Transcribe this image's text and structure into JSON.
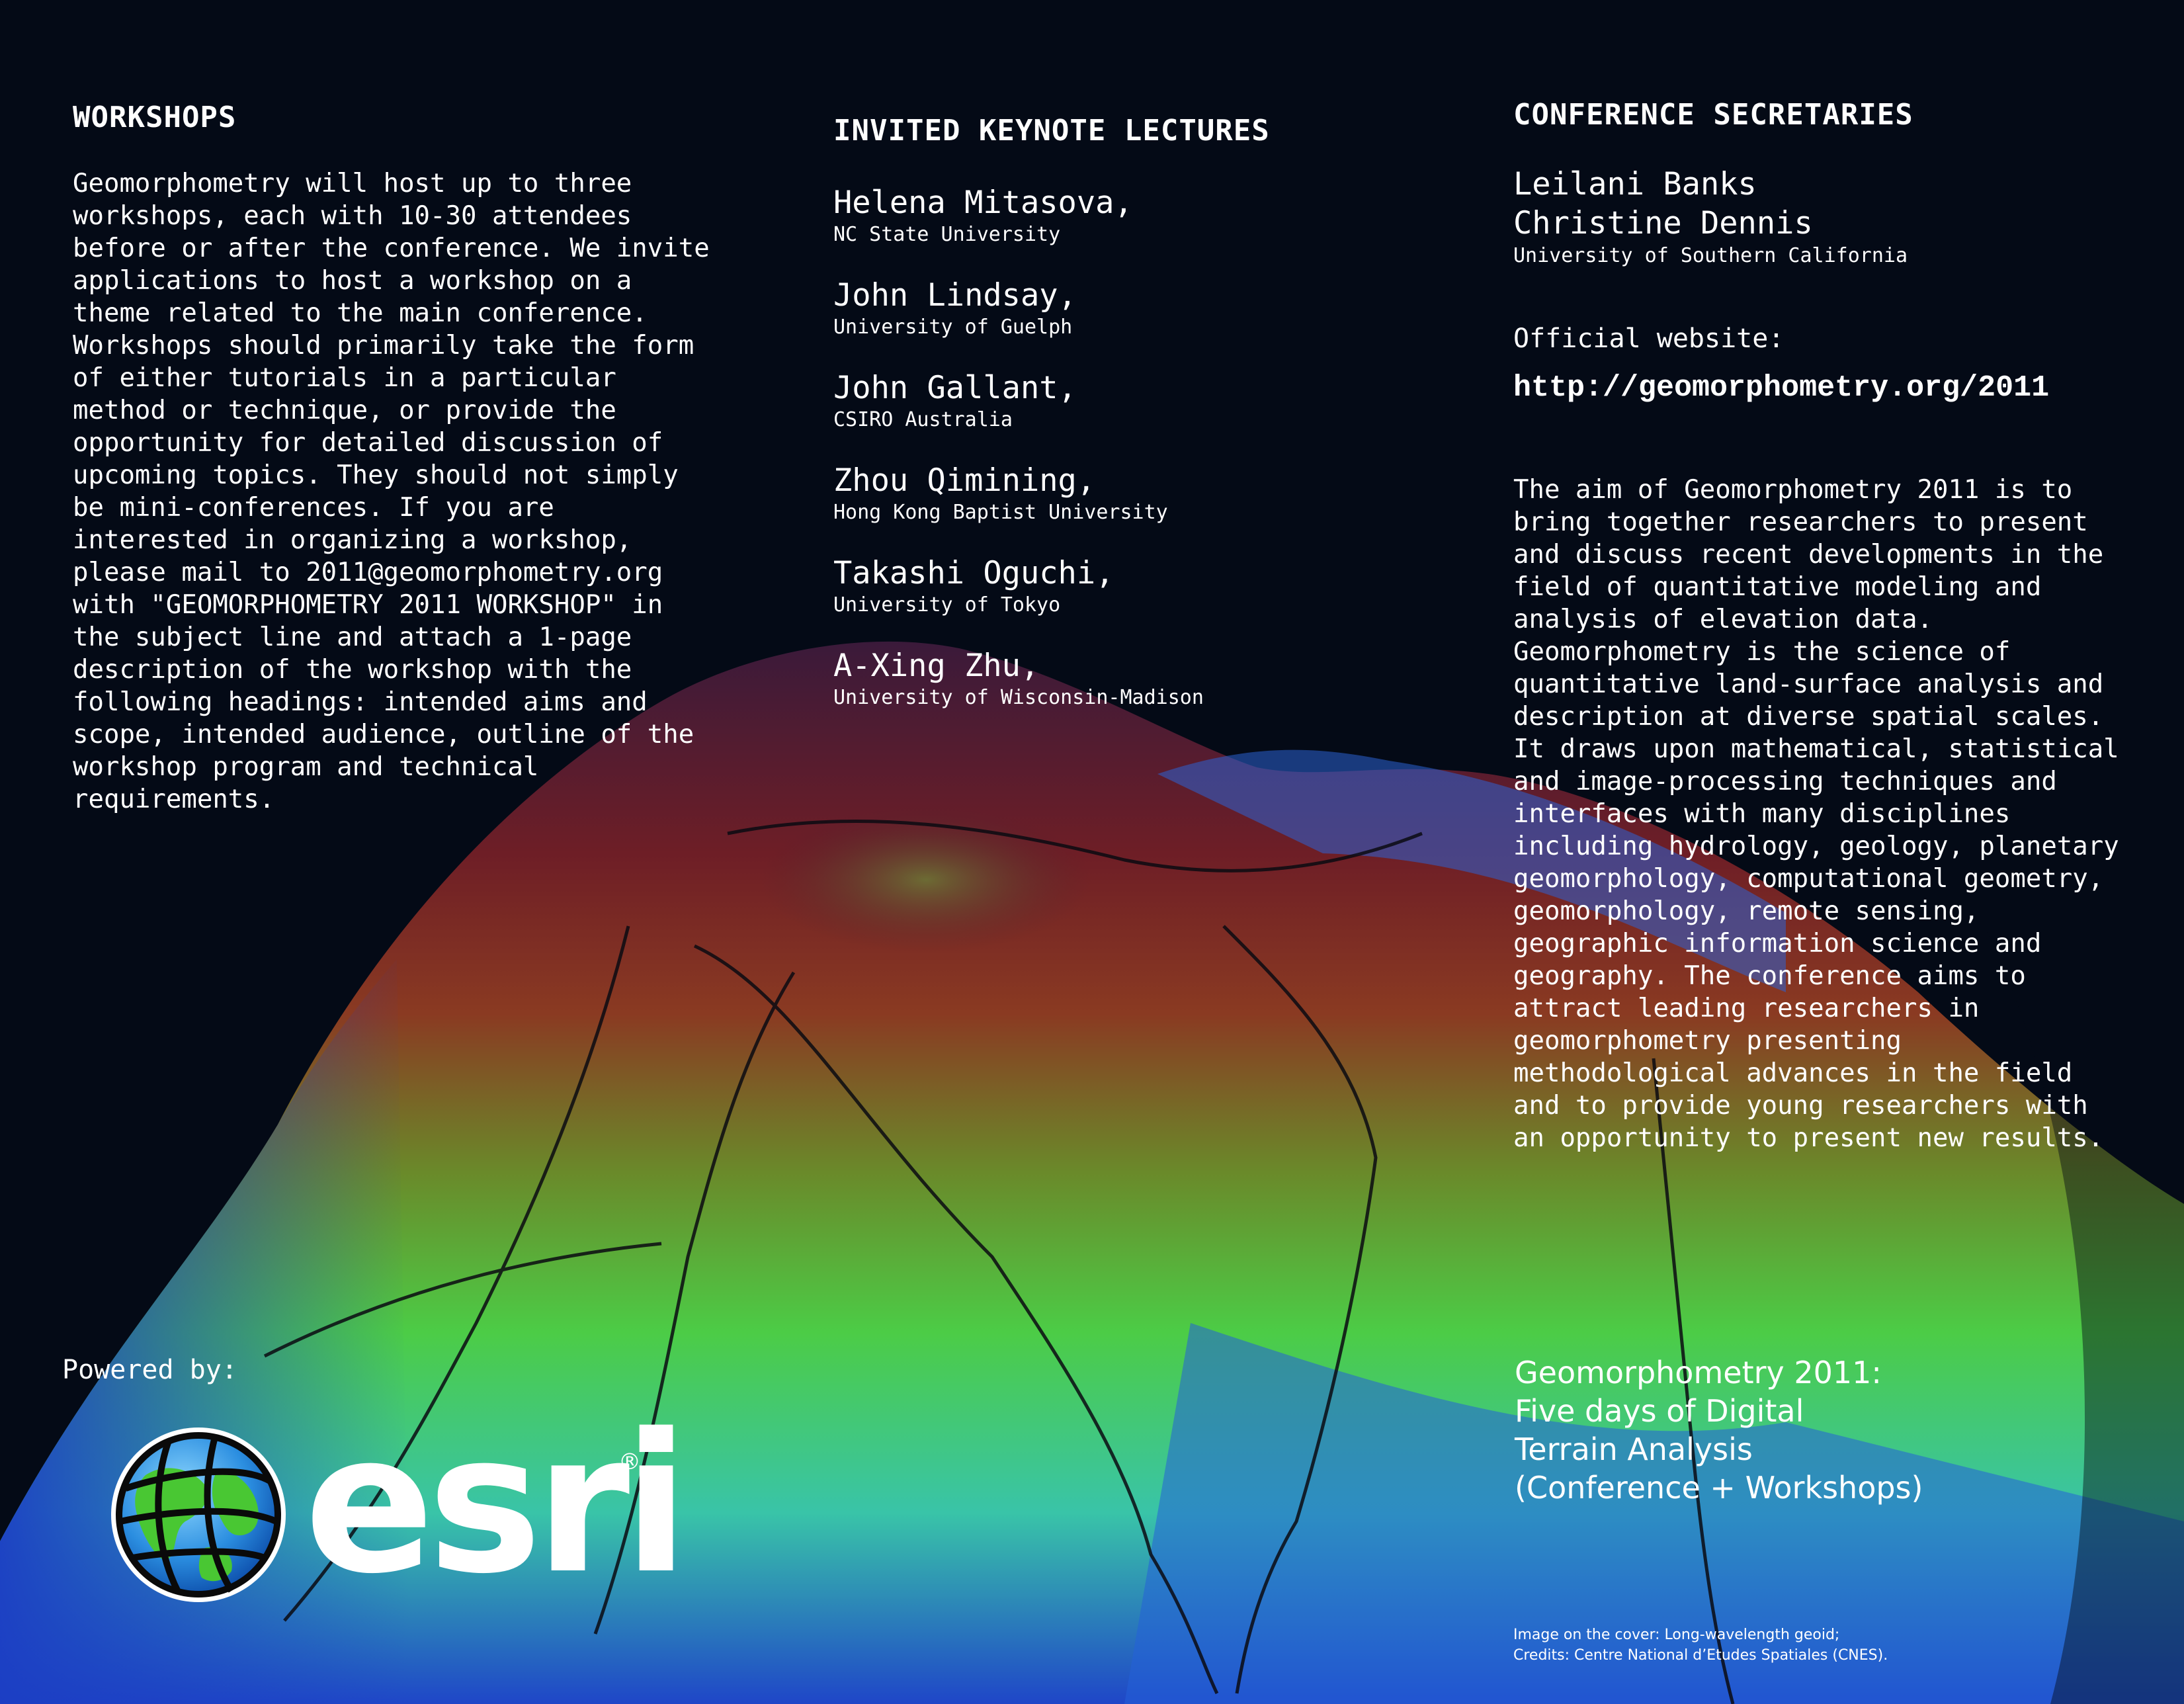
{
  "workshops": {
    "heading": "WORKSHOPS",
    "body": "Geomorphometry will host up to three\nworkshops, each with 10-30 attendees\nbefore or after the conference. We invite\napplications to host a workshop on a\ntheme related to the main conference.\nWorkshops should primarily take the form\nof either tutorials in a particular\nmethod or technique, or provide the\nopportunity for detailed discussion of\nupcoming topics. They should not simply\nbe mini-conferences. If you are\ninterested in organizing a workshop,\nplease mail to 2011@geomorphometry.org\nwith \"GEOMORPHOMETRY 2011 WORKSHOP\" in\nthe subject line and attach a 1-page\ndescription of the workshop with the\nfollowing headings: intended aims and\nscope, intended audience, outline of the\nworkshop program and technical\nrequirements."
  },
  "keynotes": {
    "heading": "INVITED KEYNOTE LECTURES",
    "lecturers": [
      {
        "name": "Helena Mitasova,",
        "affiliation": "NC State University"
      },
      {
        "name": "John Lindsay,",
        "affiliation": "University of Guelph"
      },
      {
        "name": "John Gallant,",
        "affiliation": "CSIRO Australia"
      },
      {
        "name": "Zhou Qimining,",
        "affiliation": "Hong Kong Baptist University"
      },
      {
        "name": "Takashi Oguchi,",
        "affiliation": "University of Tokyo"
      },
      {
        "name": "A-Xing Zhu,",
        "affiliation": "University of Wisconsin-Madison"
      }
    ]
  },
  "secretaries": {
    "heading": "CONFERENCE SECRETARIES",
    "names": [
      "Leilani Banks",
      "Christine Dennis"
    ],
    "affiliation": "University of Southern California",
    "website_label": "Official website:",
    "website_url": "http://geomorphometry.org/2011",
    "aim": "The aim of Geomorphometry 2011 is to\nbring together researchers to present\nand discuss recent developments in the\nfield of quantitative modeling and\nanalysis of elevation data.\nGeomorphometry is the science of\nquantitative land-surface analysis and\ndescription at diverse spatial scales.\nIt draws upon mathematical, statistical\nand image-processing techniques and\ninterfaces with many disciplines\nincluding hydrology, geology, planetary\ngeomorphology, computational geometry,\ngeomorphology, remote sensing,\ngeographic information science and\ngeography. The conference aims to\nattract leading researchers in\ngeomorphometry presenting\nmethodological advances in the field\nand to provide young researchers with\nan opportunity to present new results."
  },
  "tagline": "Geomorphometry 2011:\nFive days of Digital\nTerrain Analysis\n(Conference + Workshops)",
  "credits": "Image on the cover: Long-wavelength geoid;\nCredits: Centre National d’Etudes Spatiales (CNES).",
  "sponsor": {
    "powered_label": "Powered by:",
    "logo_text": "esri",
    "registered_mark": "®"
  },
  "colors": {
    "background": "#040a16",
    "text": "#ffffff",
    "terrain_low": "#1f46c8",
    "terrain_mid": "#5fd04a",
    "terrain_high": "#6a1e2a"
  }
}
